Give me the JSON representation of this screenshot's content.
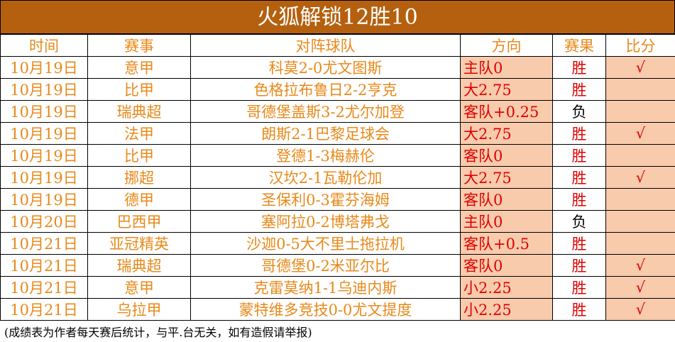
{
  "title": "火狐解锁12胜10",
  "header": [
    "时间",
    "赛事",
    "对阵球队",
    "方向",
    "赛果",
    "比分"
  ],
  "rows": [
    {
      "time": "10月19日",
      "league": "意甲",
      "match": "科莫2-0尤文图斯",
      "direction": "主队0",
      "result": "胜",
      "result_color": "#e00000",
      "score": "√"
    },
    {
      "time": "10月19日",
      "league": "比甲",
      "match": "色格拉布鲁日2-2亨克",
      "direction": "大2.75",
      "result": "胜",
      "result_color": "#e00000"
    },
    {
      "time": "10月19日",
      "league": "瑞典超",
      "match": "哥德堡盖斯3-2尤尔加登",
      "direction": "客队+0.25",
      "result": "负",
      "result_color": "#000000"
    },
    {
      "time": "10月19日",
      "league": "法甲",
      "match": "朗斯2-1巴黎足球会",
      "direction": "大2.75",
      "result": "胜",
      "result_color": "#e00000",
      "score": "√"
    },
    {
      "time": "10月19日",
      "league": "比甲",
      "match": "登德1-3梅赫伦",
      "direction": "客队0",
      "result": "胜",
      "result_color": "#e00000"
    },
    {
      "time": "10月19日",
      "league": "挪超",
      "match": "汉坎2-1瓦勒伦加",
      "direction": "大2.75",
      "result": "胜",
      "result_color": "#e00000",
      "score": "√"
    },
    {
      "time": "10月19日",
      "league": "德甲",
      "match": "圣保利0-3霍芬海姆",
      "direction": "客队0",
      "result": "胜",
      "result_color": "#e00000"
    },
    {
      "time": "10月20日",
      "league": "巴西甲",
      "match": "塞阿拉0-2博塔弗戈",
      "direction": "主队0",
      "result": "负",
      "result_color": "#000000"
    },
    {
      "time": "10月21日",
      "league": "亚冠精英",
      "match": "沙迦0-5大不里士拖拉机",
      "direction": "客队+0.5",
      "result": "胜",
      "result_color": "#e00000"
    },
    {
      "time": "10月21日",
      "league": "瑞典超",
      "match": "哥德堡0-2米亚尔比",
      "direction": "客队0",
      "result": "胜",
      "result_color": "#e00000",
      "score": "√"
    },
    {
      "time": "10月21日",
      "league": "意甲",
      "match": "克雷莫纳1-1乌迪内斯",
      "direction": "小2.25",
      "result": "胜",
      "result_color": "#e00000",
      "score": "√"
    },
    {
      "time": "10月21日",
      "league": "乌拉甲",
      "match": "蒙特维多竞技0-0尤文提度",
      "direction": "小2.25",
      "result": "胜",
      "result_color": "#e00000",
      "score": "√"
    }
  ],
  "footer": "(成绩表为作者每天赛后统计，与平.台无关，如有造假请举报)"
}
